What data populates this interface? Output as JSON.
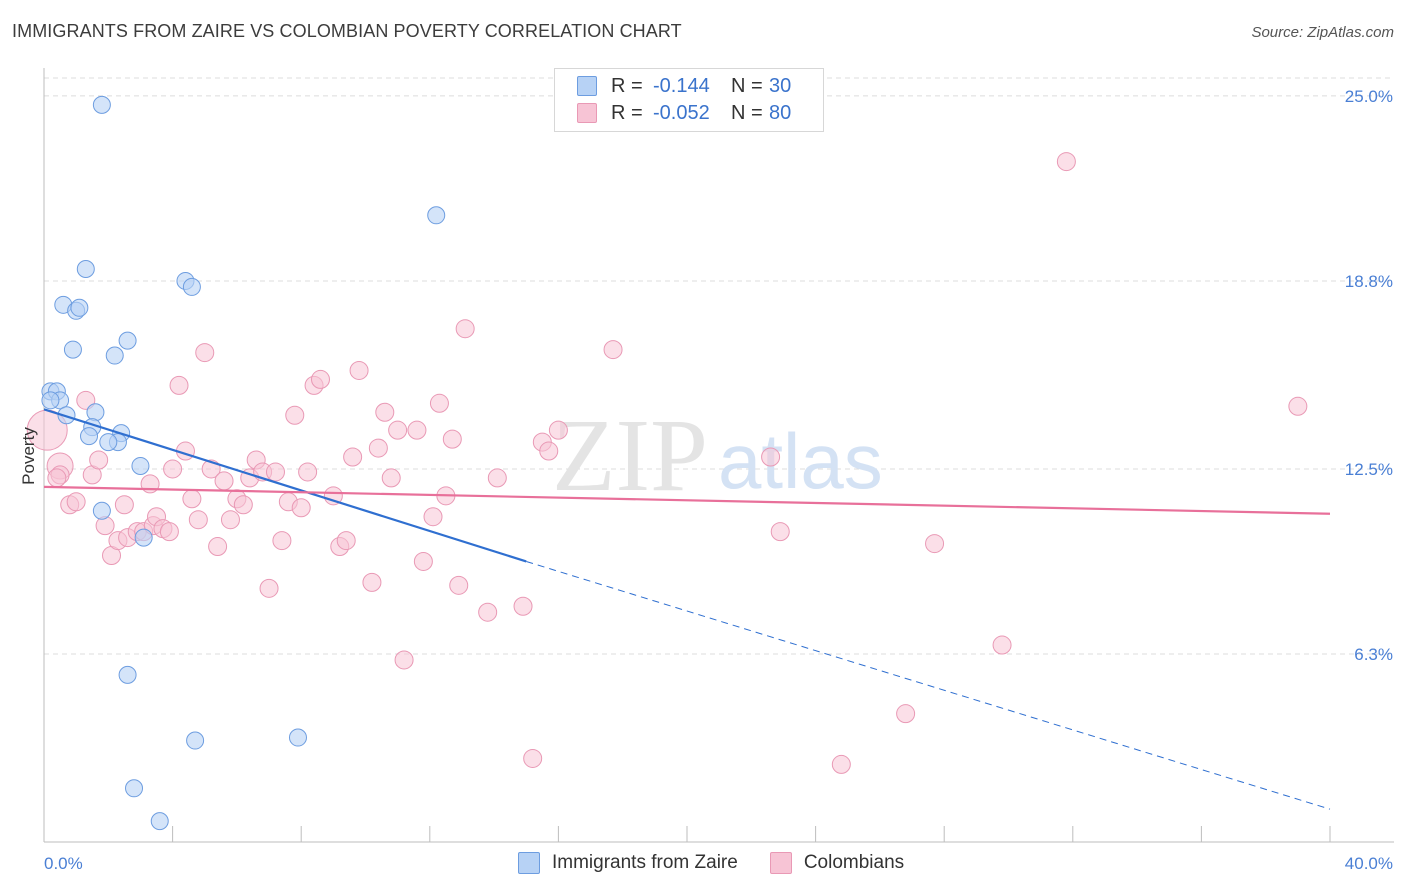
{
  "title": "IMMIGRANTS FROM ZAIRE VS COLOMBIAN POVERTY CORRELATION CHART",
  "source": "Source: ZipAtlas.com",
  "watermark": {
    "zip": "ZIP",
    "atlas": "atlas"
  },
  "legend": {
    "r_label": "R =",
    "n_label": "N =",
    "series1": {
      "r": "-0.144",
      "n": "30"
    },
    "series2": {
      "r": "-0.052",
      "n": "80"
    }
  },
  "colors": {
    "blue_fill": "#b7d2f5",
    "blue_stroke": "#6d9de0",
    "blue_line": "#2f6fd0",
    "pink_fill": "#f7c4d5",
    "pink_stroke": "#e999b5",
    "pink_line": "#e8709a",
    "tick_text": "#4a7fd4",
    "grid": "#dcdcdc"
  },
  "chart_data": {
    "type": "scatter",
    "title": "IMMIGRANTS FROM ZAIRE VS COLOMBIAN POVERTY CORRELATION CHART",
    "xlabel": "",
    "ylabel": "Poverty",
    "xlim": [
      0,
      40
    ],
    "ylim": [
      0,
      25.6
    ],
    "x_tick_labels": [
      "0.0%",
      "40.0%"
    ],
    "y_ticks": [
      6.3,
      12.5,
      18.8,
      25.0
    ],
    "y_tick_labels": [
      "6.3%",
      "12.5%",
      "18.8%",
      "25.0%"
    ],
    "grid": "horizontal dashed",
    "legend_entries": [
      "Immigrants from Zaire",
      "Colombians"
    ],
    "series": [
      {
        "name": "Immigrants from Zaire",
        "r": -0.144,
        "n": 30,
        "points": [
          [
            1.8,
            24.7
          ],
          [
            0.2,
            15.1
          ],
          [
            0.4,
            15.1
          ],
          [
            0.5,
            14.8
          ],
          [
            0.2,
            14.8
          ],
          [
            0.7,
            14.3
          ],
          [
            1.6,
            14.4
          ],
          [
            1.5,
            13.9
          ],
          [
            1.4,
            13.6
          ],
          [
            2.4,
            13.7
          ],
          [
            2.3,
            13.4
          ],
          [
            2.0,
            13.4
          ],
          [
            3.0,
            12.6
          ],
          [
            3.1,
            10.2
          ],
          [
            1.8,
            11.1
          ],
          [
            0.6,
            18.0
          ],
          [
            1.0,
            17.8
          ],
          [
            1.1,
            17.9
          ],
          [
            1.3,
            19.2
          ],
          [
            0.9,
            16.5
          ],
          [
            2.6,
            16.8
          ],
          [
            2.2,
            16.3
          ],
          [
            4.4,
            18.8
          ],
          [
            4.6,
            18.6
          ],
          [
            12.2,
            21.0
          ],
          [
            2.6,
            5.6
          ],
          [
            4.7,
            3.4
          ],
          [
            7.9,
            3.5
          ],
          [
            2.8,
            1.8
          ],
          [
            3.6,
            0.7
          ]
        ],
        "trend": {
          "x0": 0,
          "y0": 14.5,
          "x1": 15.0,
          "y1": 9.4,
          "dashed_to_x": 40,
          "dashed_to_y": 1.1
        }
      },
      {
        "name": "Colombians",
        "r": -0.052,
        "n": 80,
        "points": [
          [
            0.1,
            13.8
          ],
          [
            0.5,
            12.6
          ],
          [
            0.5,
            12.3
          ],
          [
            0.8,
            11.3
          ],
          [
            1.0,
            11.4
          ],
          [
            1.3,
            14.8
          ],
          [
            1.5,
            12.3
          ],
          [
            1.7,
            12.8
          ],
          [
            1.9,
            10.6
          ],
          [
            2.1,
            9.6
          ],
          [
            2.3,
            10.1
          ],
          [
            2.5,
            11.3
          ],
          [
            2.6,
            10.2
          ],
          [
            2.9,
            10.4
          ],
          [
            3.1,
            10.4
          ],
          [
            3.3,
            12.0
          ],
          [
            3.4,
            10.6
          ],
          [
            3.5,
            10.9
          ],
          [
            3.7,
            10.5
          ],
          [
            3.9,
            10.4
          ],
          [
            4.0,
            12.5
          ],
          [
            4.2,
            15.3
          ],
          [
            4.4,
            13.1
          ],
          [
            4.6,
            11.5
          ],
          [
            4.8,
            10.8
          ],
          [
            5.0,
            16.4
          ],
          [
            5.2,
            12.5
          ],
          [
            5.4,
            9.9
          ],
          [
            5.6,
            12.1
          ],
          [
            5.8,
            10.8
          ],
          [
            6.0,
            11.5
          ],
          [
            6.2,
            11.3
          ],
          [
            6.4,
            12.2
          ],
          [
            6.6,
            12.8
          ],
          [
            6.8,
            12.4
          ],
          [
            7.0,
            8.5
          ],
          [
            7.2,
            12.4
          ],
          [
            7.4,
            10.1
          ],
          [
            7.6,
            11.4
          ],
          [
            7.8,
            14.3
          ],
          [
            8.0,
            11.2
          ],
          [
            8.2,
            12.4
          ],
          [
            8.4,
            15.3
          ],
          [
            8.6,
            15.5
          ],
          [
            9.0,
            11.6
          ],
          [
            9.2,
            9.9
          ],
          [
            9.4,
            10.1
          ],
          [
            9.6,
            12.9
          ],
          [
            9.8,
            15.8
          ],
          [
            10.2,
            8.7
          ],
          [
            10.4,
            13.2
          ],
          [
            10.6,
            14.4
          ],
          [
            10.8,
            12.2
          ],
          [
            11.0,
            13.8
          ],
          [
            11.2,
            6.1
          ],
          [
            11.6,
            13.8
          ],
          [
            11.8,
            9.4
          ],
          [
            12.1,
            10.9
          ],
          [
            12.3,
            14.7
          ],
          [
            12.5,
            11.6
          ],
          [
            12.7,
            13.5
          ],
          [
            12.9,
            8.6
          ],
          [
            13.1,
            17.2
          ],
          [
            13.8,
            7.7
          ],
          [
            14.1,
            12.2
          ],
          [
            14.9,
            7.9
          ],
          [
            15.2,
            2.8
          ],
          [
            15.5,
            13.4
          ],
          [
            15.7,
            13.1
          ],
          [
            16.0,
            13.8
          ],
          [
            17.7,
            16.5
          ],
          [
            22.6,
            12.9
          ],
          [
            22.9,
            10.4
          ],
          [
            24.8,
            2.6
          ],
          [
            26.8,
            4.3
          ],
          [
            27.7,
            10.0
          ],
          [
            29.8,
            6.6
          ],
          [
            31.8,
            22.8
          ],
          [
            39.0,
            14.6
          ],
          [
            0.4,
            12.2
          ]
        ],
        "trend": {
          "x0": 0,
          "y0": 11.9,
          "x1": 40,
          "y1": 11.0
        }
      }
    ]
  }
}
